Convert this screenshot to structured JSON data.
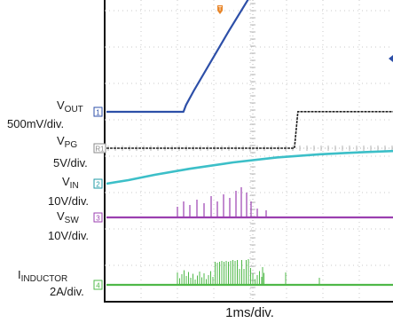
{
  "chart_data": {
    "type": "line",
    "timebase": "1ms/div.",
    "trigger_marker": "T",
    "x_unit": "ms",
    "xlim": [
      0,
      3.3
    ],
    "grid": true,
    "channels": [
      {
        "id": "1",
        "name": "V",
        "name_sub": "OUT",
        "scale": "500mV/div.",
        "color": "#2d4fa8",
        "points": [
          [
            0,
            0
          ],
          [
            0.83,
            0
          ],
          [
            0.86,
            0.08
          ],
          [
            0.95,
            0.25
          ],
          [
            1.35,
            0.95
          ],
          [
            1.75,
            1.62
          ],
          [
            1.85,
            1.73
          ],
          [
            2.0,
            1.71
          ],
          [
            2.3,
            1.72
          ],
          [
            2.35,
            1.79
          ],
          [
            3.3,
            1.79
          ]
        ]
      },
      {
        "id": "R1",
        "name": "V",
        "name_sub": "PG",
        "scale": "5V/div.",
        "color": "#222222",
        "points": [
          [
            0,
            0
          ],
          [
            2.1,
            0
          ],
          [
            2.14,
            0.98
          ],
          [
            3.3,
            0.98
          ]
        ]
      },
      {
        "id": "2",
        "name": "V",
        "name_sub": "IN",
        "scale": "10V/div.",
        "color": "#3cbfc8",
        "points": [
          [
            0,
            0
          ],
          [
            0.2,
            0.1
          ],
          [
            0.5,
            0.25
          ],
          [
            0.9,
            0.42
          ],
          [
            1.4,
            0.6
          ],
          [
            1.9,
            0.74
          ],
          [
            2.4,
            0.83
          ],
          [
            2.9,
            0.89
          ],
          [
            3.3,
            0.92
          ]
        ]
      },
      {
        "id": "3",
        "name": "V",
        "name_sub": "SW",
        "scale": "10V/div.",
        "color": "#9b3fb0",
        "points": [
          [
            0,
            0
          ],
          [
            3.3,
            0
          ]
        ]
      },
      {
        "id": "4",
        "name": "I",
        "name_sub": "INDUCTOR",
        "scale": "2A/div.",
        "color": "#4fb848",
        "points": [
          [
            0,
            0
          ],
          [
            3.3,
            0
          ]
        ]
      }
    ]
  }
}
